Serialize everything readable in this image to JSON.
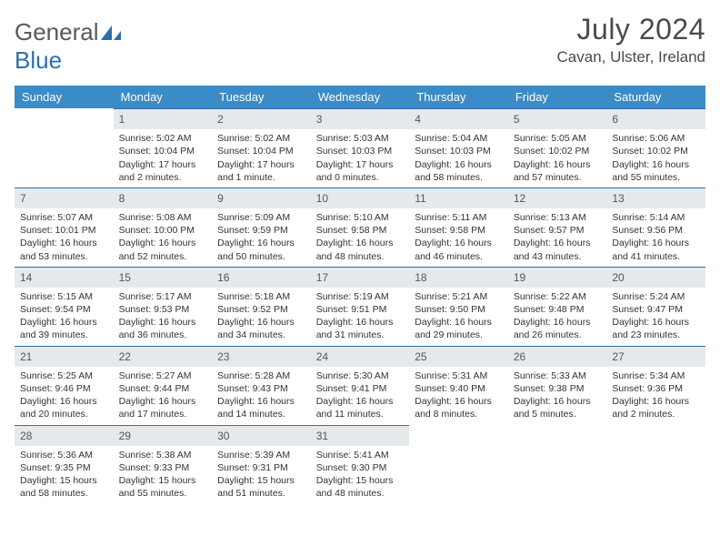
{
  "brand": {
    "part1": "General",
    "part2": "Blue"
  },
  "title": "July 2024",
  "location": "Cavan, Ulster, Ireland",
  "headers": [
    "Sunday",
    "Monday",
    "Tuesday",
    "Wednesday",
    "Thursday",
    "Friday",
    "Saturday"
  ],
  "theme": {
    "header_bg": "#3b8bc6",
    "header_fg": "#ffffff",
    "daynum_bg": "#e6e9ec",
    "daynum_border": "#2f6fa8",
    "text": "#333333",
    "title_color": "#4a4a4a"
  },
  "weeks": [
    [
      null,
      {
        "n": "1",
        "sr": "Sunrise: 5:02 AM",
        "ss": "Sunset: 10:04 PM",
        "d1": "Daylight: 17 hours",
        "d2": "and 2 minutes."
      },
      {
        "n": "2",
        "sr": "Sunrise: 5:02 AM",
        "ss": "Sunset: 10:04 PM",
        "d1": "Daylight: 17 hours",
        "d2": "and 1 minute."
      },
      {
        "n": "3",
        "sr": "Sunrise: 5:03 AM",
        "ss": "Sunset: 10:03 PM",
        "d1": "Daylight: 17 hours",
        "d2": "and 0 minutes."
      },
      {
        "n": "4",
        "sr": "Sunrise: 5:04 AM",
        "ss": "Sunset: 10:03 PM",
        "d1": "Daylight: 16 hours",
        "d2": "and 58 minutes."
      },
      {
        "n": "5",
        "sr": "Sunrise: 5:05 AM",
        "ss": "Sunset: 10:02 PM",
        "d1": "Daylight: 16 hours",
        "d2": "and 57 minutes."
      },
      {
        "n": "6",
        "sr": "Sunrise: 5:06 AM",
        "ss": "Sunset: 10:02 PM",
        "d1": "Daylight: 16 hours",
        "d2": "and 55 minutes."
      }
    ],
    [
      {
        "n": "7",
        "sr": "Sunrise: 5:07 AM",
        "ss": "Sunset: 10:01 PM",
        "d1": "Daylight: 16 hours",
        "d2": "and 53 minutes."
      },
      {
        "n": "8",
        "sr": "Sunrise: 5:08 AM",
        "ss": "Sunset: 10:00 PM",
        "d1": "Daylight: 16 hours",
        "d2": "and 52 minutes."
      },
      {
        "n": "9",
        "sr": "Sunrise: 5:09 AM",
        "ss": "Sunset: 9:59 PM",
        "d1": "Daylight: 16 hours",
        "d2": "and 50 minutes."
      },
      {
        "n": "10",
        "sr": "Sunrise: 5:10 AM",
        "ss": "Sunset: 9:58 PM",
        "d1": "Daylight: 16 hours",
        "d2": "and 48 minutes."
      },
      {
        "n": "11",
        "sr": "Sunrise: 5:11 AM",
        "ss": "Sunset: 9:58 PM",
        "d1": "Daylight: 16 hours",
        "d2": "and 46 minutes."
      },
      {
        "n": "12",
        "sr": "Sunrise: 5:13 AM",
        "ss": "Sunset: 9:57 PM",
        "d1": "Daylight: 16 hours",
        "d2": "and 43 minutes."
      },
      {
        "n": "13",
        "sr": "Sunrise: 5:14 AM",
        "ss": "Sunset: 9:56 PM",
        "d1": "Daylight: 16 hours",
        "d2": "and 41 minutes."
      }
    ],
    [
      {
        "n": "14",
        "sr": "Sunrise: 5:15 AM",
        "ss": "Sunset: 9:54 PM",
        "d1": "Daylight: 16 hours",
        "d2": "and 39 minutes."
      },
      {
        "n": "15",
        "sr": "Sunrise: 5:17 AM",
        "ss": "Sunset: 9:53 PM",
        "d1": "Daylight: 16 hours",
        "d2": "and 36 minutes."
      },
      {
        "n": "16",
        "sr": "Sunrise: 5:18 AM",
        "ss": "Sunset: 9:52 PM",
        "d1": "Daylight: 16 hours",
        "d2": "and 34 minutes."
      },
      {
        "n": "17",
        "sr": "Sunrise: 5:19 AM",
        "ss": "Sunset: 9:51 PM",
        "d1": "Daylight: 16 hours",
        "d2": "and 31 minutes."
      },
      {
        "n": "18",
        "sr": "Sunrise: 5:21 AM",
        "ss": "Sunset: 9:50 PM",
        "d1": "Daylight: 16 hours",
        "d2": "and 29 minutes."
      },
      {
        "n": "19",
        "sr": "Sunrise: 5:22 AM",
        "ss": "Sunset: 9:48 PM",
        "d1": "Daylight: 16 hours",
        "d2": "and 26 minutes."
      },
      {
        "n": "20",
        "sr": "Sunrise: 5:24 AM",
        "ss": "Sunset: 9:47 PM",
        "d1": "Daylight: 16 hours",
        "d2": "and 23 minutes."
      }
    ],
    [
      {
        "n": "21",
        "sr": "Sunrise: 5:25 AM",
        "ss": "Sunset: 9:46 PM",
        "d1": "Daylight: 16 hours",
        "d2": "and 20 minutes."
      },
      {
        "n": "22",
        "sr": "Sunrise: 5:27 AM",
        "ss": "Sunset: 9:44 PM",
        "d1": "Daylight: 16 hours",
        "d2": "and 17 minutes."
      },
      {
        "n": "23",
        "sr": "Sunrise: 5:28 AM",
        "ss": "Sunset: 9:43 PM",
        "d1": "Daylight: 16 hours",
        "d2": "and 14 minutes."
      },
      {
        "n": "24",
        "sr": "Sunrise: 5:30 AM",
        "ss": "Sunset: 9:41 PM",
        "d1": "Daylight: 16 hours",
        "d2": "and 11 minutes."
      },
      {
        "n": "25",
        "sr": "Sunrise: 5:31 AM",
        "ss": "Sunset: 9:40 PM",
        "d1": "Daylight: 16 hours",
        "d2": "and 8 minutes."
      },
      {
        "n": "26",
        "sr": "Sunrise: 5:33 AM",
        "ss": "Sunset: 9:38 PM",
        "d1": "Daylight: 16 hours",
        "d2": "and 5 minutes."
      },
      {
        "n": "27",
        "sr": "Sunrise: 5:34 AM",
        "ss": "Sunset: 9:36 PM",
        "d1": "Daylight: 16 hours",
        "d2": "and 2 minutes."
      }
    ],
    [
      {
        "n": "28",
        "sr": "Sunrise: 5:36 AM",
        "ss": "Sunset: 9:35 PM",
        "d1": "Daylight: 15 hours",
        "d2": "and 58 minutes."
      },
      {
        "n": "29",
        "sr": "Sunrise: 5:38 AM",
        "ss": "Sunset: 9:33 PM",
        "d1": "Daylight: 15 hours",
        "d2": "and 55 minutes."
      },
      {
        "n": "30",
        "sr": "Sunrise: 5:39 AM",
        "ss": "Sunset: 9:31 PM",
        "d1": "Daylight: 15 hours",
        "d2": "and 51 minutes."
      },
      {
        "n": "31",
        "sr": "Sunrise: 5:41 AM",
        "ss": "Sunset: 9:30 PM",
        "d1": "Daylight: 15 hours",
        "d2": "and 48 minutes."
      },
      null,
      null,
      null
    ]
  ]
}
